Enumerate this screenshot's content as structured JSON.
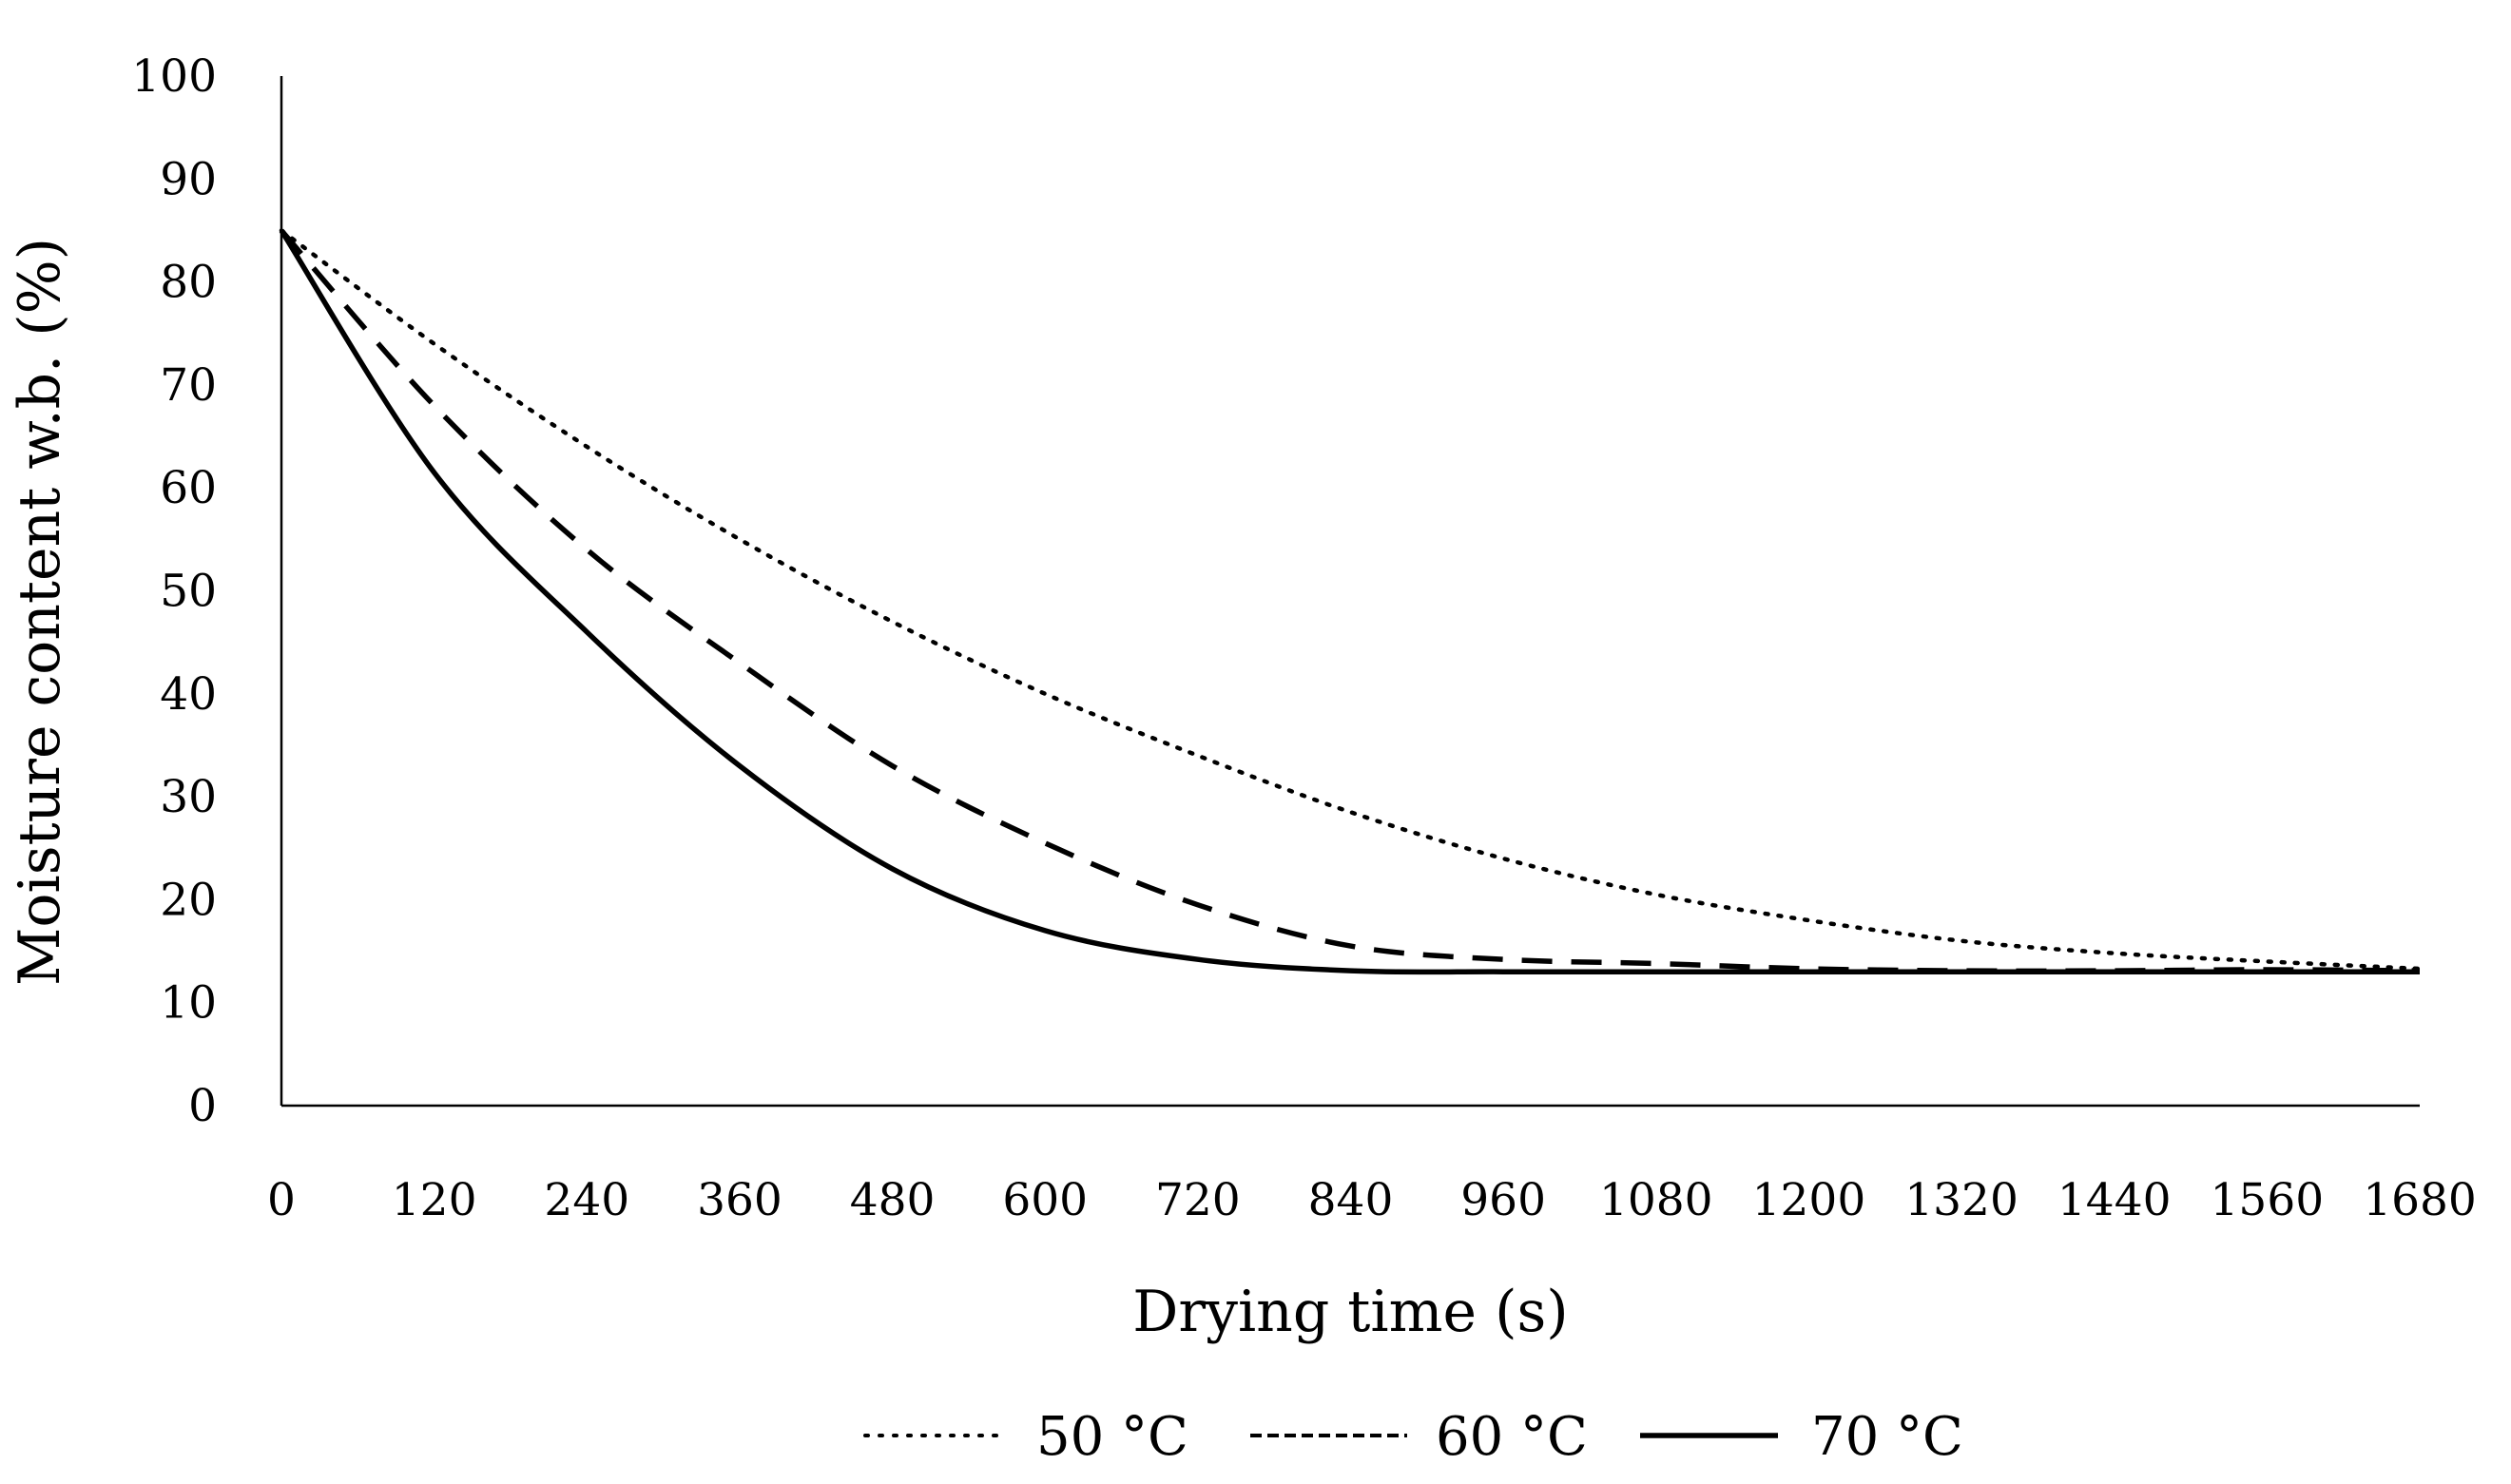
{
  "chart_data": {
    "type": "line",
    "title": "",
    "xlabel": "Drying time (s)",
    "ylabel": "Moisture content w.b. (%)",
    "x": [
      0,
      120,
      240,
      360,
      480,
      600,
      720,
      840,
      960,
      1080,
      1200,
      1320,
      1440,
      1560,
      1680
    ],
    "x_tick_labels": [
      "0",
      "120",
      "240",
      "360",
      "480",
      "600",
      "720",
      "840",
      "960",
      "1080",
      "1200",
      "1320",
      "1440",
      "1560",
      "1680"
    ],
    "y_tick_labels": [
      "0",
      "10",
      "20",
      "30",
      "40",
      "50",
      "60",
      "70",
      "80",
      "90",
      "100"
    ],
    "xlim": [
      0,
      1680
    ],
    "ylim": [
      0,
      100
    ],
    "grid": false,
    "legend_position": "bottom-center",
    "series": [
      {
        "name": "50 °C",
        "style": "dotted",
        "values": [
          85,
          74,
          64,
          55,
          47,
          40,
          34,
          28.5,
          24,
          20.5,
          18,
          16,
          14.8,
          14,
          13.3
        ]
      },
      {
        "name": "60 °C",
        "style": "dashed",
        "values": [
          85,
          68,
          54,
          43,
          33,
          25.5,
          19.5,
          15.5,
          14.2,
          13.8,
          13.3,
          13.1,
          13.1,
          13.2,
          13.1
        ]
      },
      {
        "name": "70 °C",
        "style": "solid",
        "values": [
          85,
          61.5,
          46,
          33,
          23,
          17,
          14.2,
          13.1,
          13,
          13,
          13,
          13,
          13,
          13,
          13
        ]
      }
    ]
  }
}
